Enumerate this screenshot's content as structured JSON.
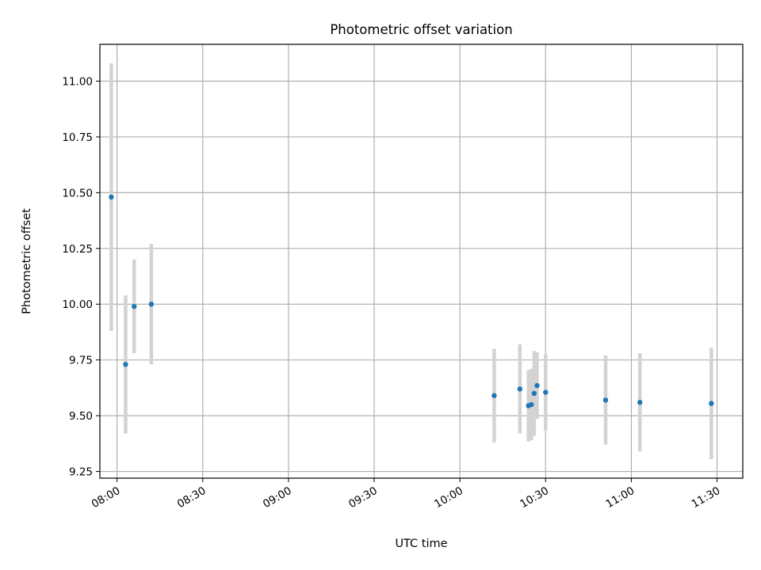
{
  "chart_data": {
    "type": "scatter",
    "title": "Photometric offset variation",
    "xlabel": "UTC time",
    "ylabel": "Photometric offset",
    "x_axis_type": "time",
    "xlim": [
      "07:54",
      "11:39"
    ],
    "ylim": [
      9.22,
      11.165
    ],
    "xticks": [
      "08:00",
      "08:30",
      "09:00",
      "09:30",
      "10:00",
      "10:30",
      "11:00",
      "11:30"
    ],
    "yticks": [
      "9.25",
      "9.50",
      "9.75",
      "10.00",
      "10.25",
      "10.50",
      "10.75",
      "11.00"
    ],
    "grid": true,
    "marker_color": "#1f77b4",
    "errorbar_color": "#d3d3d3",
    "points": [
      {
        "x": "07:58",
        "y": 10.48,
        "yerr": 0.6
      },
      {
        "x": "08:03",
        "y": 9.73,
        "yerr": 0.31
      },
      {
        "x": "08:06",
        "y": 9.99,
        "yerr": 0.21
      },
      {
        "x": "08:12",
        "y": 10.0,
        "yerr": 0.27
      },
      {
        "x": "10:12",
        "y": 9.59,
        "yerr": 0.21
      },
      {
        "x": "10:21",
        "y": 9.62,
        "yerr": 0.2
      },
      {
        "x": "10:24",
        "y": 9.545,
        "yerr": 0.16
      },
      {
        "x": "10:25",
        "y": 9.55,
        "yerr": 0.16
      },
      {
        "x": "10:26",
        "y": 9.6,
        "yerr": 0.19
      },
      {
        "x": "10:27",
        "y": 9.635,
        "yerr": 0.15
      },
      {
        "x": "10:30",
        "y": 9.605,
        "yerr": 0.17
      },
      {
        "x": "10:51",
        "y": 9.57,
        "yerr": 0.2
      },
      {
        "x": "11:03",
        "y": 9.56,
        "yerr": 0.22
      },
      {
        "x": "11:28",
        "y": 9.555,
        "yerr": 0.25
      }
    ]
  }
}
